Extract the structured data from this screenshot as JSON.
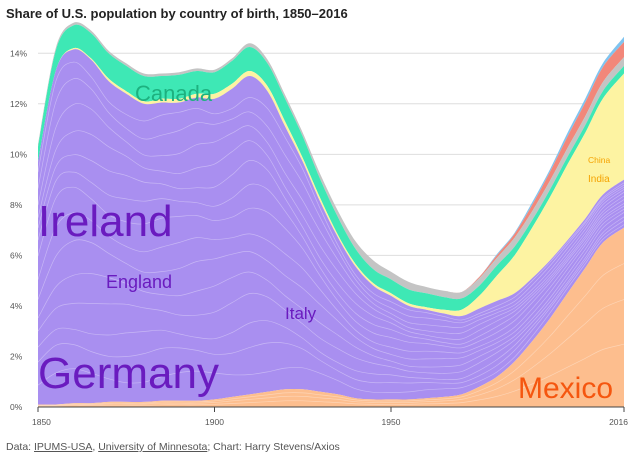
{
  "title": "Share of U.S. population by country of birth, 1850–2016",
  "source": {
    "prefix": "Data: ",
    "link1": "IPUMS-USA",
    "sep": ", ",
    "link2": "University of Minnesota",
    "suffix": "; Chart: Harry Stevens/Axios"
  },
  "colors": {
    "mexico": "#fdbe8e",
    "europe_purple": "#a98ff0",
    "asia_yellow": "#fdf3a2",
    "canada": "#3ee8b5",
    "gray": "#c4c4c4",
    "red": "#f2877a",
    "blue": "#7fc4f0",
    "label_purple": "#6a1bbf",
    "label_mexico": "#f5560f",
    "label_canada": "#1db17f",
    "label_asia": "#f5a300"
  },
  "chart_data": {
    "type": "area",
    "stacked": true,
    "x_domain": [
      1850,
      2016
    ],
    "ylim": [
      0,
      15
    ],
    "y_ticks": [
      "0%",
      "2%",
      "4%",
      "6%",
      "8%",
      "10%",
      "12%",
      "14%"
    ],
    "x_ticks": [
      "1850",
      "1900",
      "1950",
      "2016"
    ],
    "grid": true,
    "series_order": [
      "Mexico",
      "Europe",
      "Asia",
      "Canada",
      "Other",
      "Other red",
      "Other blue"
    ],
    "x": [
      1850,
      1855,
      1860,
      1865,
      1870,
      1875,
      1880,
      1885,
      1890,
      1895,
      1900,
      1905,
      1910,
      1915,
      1920,
      1925,
      1930,
      1935,
      1940,
      1945,
      1950,
      1955,
      1960,
      1965,
      1970,
      1975,
      1980,
      1985,
      1990,
      1995,
      2000,
      2005,
      2010,
      2016
    ],
    "series": [
      {
        "key": "mexico",
        "values": [
          0.1,
          0.1,
          0.15,
          0.15,
          0.2,
          0.2,
          0.2,
          0.25,
          0.25,
          0.25,
          0.3,
          0.4,
          0.5,
          0.6,
          0.7,
          0.7,
          0.6,
          0.5,
          0.35,
          0.3,
          0.3,
          0.3,
          0.35,
          0.4,
          0.5,
          0.8,
          1.2,
          1.8,
          2.6,
          3.5,
          4.5,
          5.5,
          6.5,
          7.1
        ]
      },
      {
        "key": "europe",
        "values": [
          9.6,
          13.2,
          14.0,
          13.6,
          12.7,
          12.2,
          11.8,
          11.8,
          11.8,
          12.0,
          11.9,
          12.2,
          12.6,
          11.9,
          10.4,
          9.0,
          7.5,
          6.2,
          5.2,
          4.5,
          4.1,
          3.7,
          3.5,
          3.3,
          3.1,
          3.1,
          3.0,
          2.7,
          2.5,
          2.3,
          2.1,
          1.95,
          1.9,
          1.9
        ]
      },
      {
        "key": "asia",
        "values": [
          0.0,
          0.0,
          0.05,
          0.05,
          0.1,
          0.1,
          0.1,
          0.15,
          0.15,
          0.15,
          0.2,
          0.2,
          0.2,
          0.2,
          0.2,
          0.15,
          0.15,
          0.1,
          0.1,
          0.1,
          0.1,
          0.1,
          0.1,
          0.15,
          0.25,
          0.5,
          1.0,
          1.5,
          2.0,
          2.5,
          3.0,
          3.4,
          3.8,
          4.2
        ]
      },
      {
        "key": "canada",
        "values": [
          0.6,
          0.8,
          0.9,
          1.0,
          1.0,
          1.0,
          1.0,
          0.9,
          0.95,
          0.9,
          0.85,
          0.9,
          0.95,
          0.9,
          0.9,
          0.85,
          0.75,
          0.7,
          0.6,
          0.55,
          0.55,
          0.55,
          0.55,
          0.5,
          0.45,
          0.4,
          0.4,
          0.35,
          0.3,
          0.3,
          0.3,
          0.3,
          0.3,
          0.3
        ]
      },
      {
        "key": "gray",
        "values": [
          0.1,
          0.1,
          0.1,
          0.1,
          0.1,
          0.1,
          0.1,
          0.1,
          0.1,
          0.1,
          0.1,
          0.1,
          0.15,
          0.15,
          0.15,
          0.15,
          0.2,
          0.25,
          0.3,
          0.35,
          0.3,
          0.3,
          0.25,
          0.25,
          0.25,
          0.3,
          0.3,
          0.35,
          0.35,
          0.35,
          0.35,
          0.35,
          0.35,
          0.35
        ]
      },
      {
        "key": "red",
        "values": [
          0,
          0,
          0,
          0,
          0,
          0,
          0,
          0,
          0,
          0,
          0,
          0,
          0,
          0,
          0,
          0,
          0,
          0,
          0,
          0,
          0,
          0,
          0,
          0,
          0,
          0.05,
          0.1,
          0.15,
          0.25,
          0.35,
          0.45,
          0.55,
          0.6,
          0.6
        ]
      },
      {
        "key": "blue",
        "values": [
          0,
          0,
          0,
          0,
          0,
          0,
          0,
          0,
          0,
          0,
          0,
          0,
          0,
          0,
          0,
          0,
          0,
          0,
          0,
          0,
          0,
          0,
          0,
          0,
          0,
          0,
          0.05,
          0.05,
          0.1,
          0.1,
          0.15,
          0.15,
          0.15,
          0.2
        ]
      }
    ],
    "labels": {
      "ireland": "Ireland",
      "germany": "Germany",
      "england": "England",
      "italy": "Italy",
      "canada": "Canada",
      "mexico": "Mexico",
      "china": "China",
      "india": "India"
    }
  }
}
